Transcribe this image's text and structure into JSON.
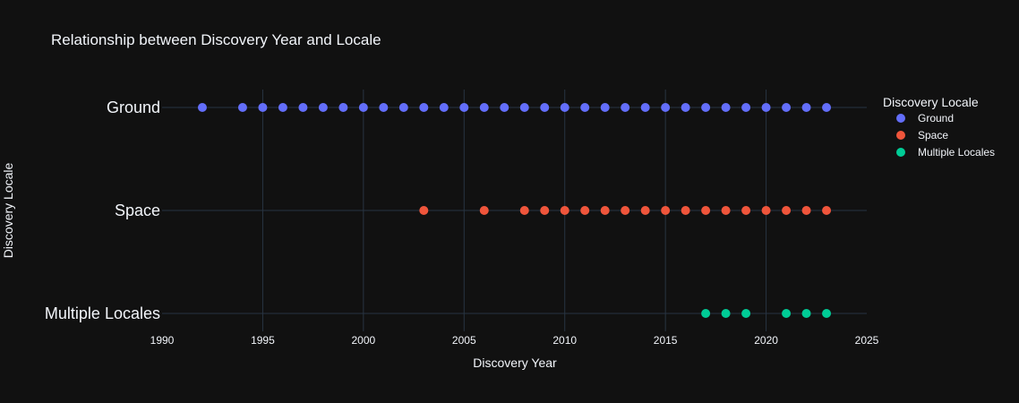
{
  "chart_data": {
    "type": "scatter",
    "title": "Relationship between Discovery Year and Locale",
    "xlabel": "Discovery Year",
    "ylabel": "Discovery Locale",
    "xlim": [
      1990,
      2025
    ],
    "xticks": [
      1990,
      1995,
      2000,
      2005,
      2010,
      2015,
      2020,
      2025
    ],
    "categories": [
      "Ground",
      "Space",
      "Multiple Locales"
    ],
    "grid": true,
    "legend": {
      "title": "Discovery Locale",
      "placement": "top-right"
    },
    "series": [
      {
        "name": "Ground",
        "color": "#636efa",
        "category": "Ground",
        "x": [
          1992,
          1994,
          1995,
          1996,
          1997,
          1998,
          1999,
          2000,
          2001,
          2002,
          2003,
          2004,
          2005,
          2006,
          2007,
          2008,
          2009,
          2010,
          2011,
          2012,
          2013,
          2014,
          2015,
          2016,
          2017,
          2018,
          2019,
          2020,
          2021,
          2022,
          2023
        ]
      },
      {
        "name": "Space",
        "color": "#ef553b",
        "category": "Space",
        "x": [
          2003,
          2006,
          2008,
          2009,
          2010,
          2011,
          2012,
          2013,
          2014,
          2015,
          2016,
          2017,
          2018,
          2019,
          2020,
          2021,
          2022,
          2023
        ]
      },
      {
        "name": "Multiple Locales",
        "color": "#00cc96",
        "category": "Multiple Locales",
        "x": [
          2017,
          2018,
          2019,
          2021,
          2022,
          2023
        ]
      }
    ]
  }
}
